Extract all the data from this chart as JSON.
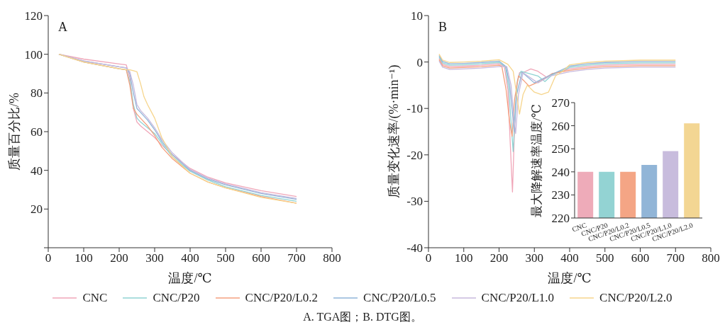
{
  "chart_data": [
    {
      "type": "line",
      "xlabel": "温度/℃",
      "ylabel": "质量百分比/%",
      "xlim": [
        0,
        800
      ],
      "xticks": [
        0,
        100,
        200,
        300,
        400,
        500,
        600,
        700,
        800
      ],
      "ylim": [
        0,
        120
      ],
      "yticks": [
        {
          "value": 0,
          "label": null
        },
        20,
        40,
        60,
        80,
        100,
        120
      ],
      "legend": "bottom",
      "annotations": [
        "A",
        "A. TGA图；B. DTG图。"
      ],
      "series": [
        {
          "name": "CNC",
          "color": "#f0a6b8",
          "x": [
            30,
            100,
            200,
            220,
            230,
            240,
            250,
            260,
            280,
            300,
            320,
            350,
            400,
            450,
            500,
            600,
            700
          ],
          "values": [
            100,
            97.5,
            95,
            94.5,
            88,
            72,
            65,
            63,
            60,
            57,
            53,
            48,
            41,
            36.5,
            33.5,
            29.5,
            26.5
          ]
        },
        {
          "name": "CNC/P20",
          "color": "#8fd3d3",
          "x": [
            30,
            100,
            200,
            220,
            230,
            240,
            250,
            260,
            280,
            300,
            320,
            350,
            400,
            450,
            500,
            600,
            700
          ],
          "values": [
            100,
            96,
            92.5,
            92,
            86,
            74,
            67,
            65,
            62,
            59,
            54,
            47,
            39.5,
            35,
            31.5,
            27,
            24
          ]
        },
        {
          "name": "CNC/P20/L0.2",
          "color": "#f4a07f",
          "x": [
            30,
            100,
            200,
            220,
            230,
            240,
            250,
            260,
            280,
            300,
            320,
            350,
            400,
            450,
            500,
            600,
            700
          ],
          "values": [
            100,
            96,
            92.5,
            92,
            84,
            72,
            69,
            67,
            63,
            58,
            52,
            46,
            38.5,
            34,
            31,
            26.5,
            23
          ]
        },
        {
          "name": "CNC/P20/L0.5",
          "color": "#8fb4d8",
          "x": [
            30,
            100,
            200,
            220,
            230,
            240,
            250,
            260,
            280,
            300,
            320,
            350,
            400,
            450,
            500,
            600,
            700
          ],
          "values": [
            100,
            96.5,
            93.5,
            93,
            90,
            80,
            72,
            70,
            66,
            61,
            55,
            48,
            40,
            35.5,
            32.5,
            28,
            25
          ]
        },
        {
          "name": "CNC/P20/L1.0",
          "color": "#c7b9dd",
          "x": [
            30,
            100,
            200,
            220,
            230,
            240,
            250,
            260,
            280,
            300,
            320,
            350,
            400,
            450,
            500,
            600,
            700
          ],
          "values": [
            100,
            96.5,
            93.5,
            93,
            91,
            84,
            74,
            71,
            67,
            62,
            56,
            49,
            40.5,
            36,
            33,
            28.5,
            25.5
          ]
        },
        {
          "name": "CNC/P20/L2.0",
          "color": "#f6d58c",
          "x": [
            30,
            100,
            200,
            220,
            230,
            240,
            250,
            260,
            270,
            280,
            300,
            320,
            350,
            400,
            450,
            500,
            600,
            700
          ],
          "values": [
            100,
            96,
            92.5,
            92,
            92,
            91.5,
            91,
            85,
            78,
            74,
            67,
            57,
            47,
            38.5,
            34,
            31,
            26,
            23
          ]
        }
      ]
    },
    {
      "type": "line",
      "xlabel": "温度/℃",
      "ylabel": "质量变化速率/(%·min⁻¹)",
      "xlim": [
        0,
        800
      ],
      "xticks": [
        0,
        100,
        200,
        300,
        400,
        500,
        600,
        700,
        800
      ],
      "ylim": [
        -40,
        10
      ],
      "yticks": [
        -40,
        -30,
        -20,
        -10,
        0,
        10
      ],
      "annotations": [
        "B"
      ],
      "series": [
        {
          "color": "#f0a6b8",
          "x": [
            30,
            40,
            60,
            100,
            150,
            200,
            215,
            225,
            232,
            238,
            244,
            250,
            258,
            270,
            290,
            310,
            335,
            350,
            400,
            450,
            500,
            600,
            700
          ],
          "values": [
            0.8,
            -0.5,
            -1,
            -0.9,
            -0.7,
            -0.4,
            -1,
            -6,
            -18,
            -28,
            -14,
            -5,
            -2.3,
            -2.2,
            -1.5,
            -2,
            -3.3,
            -2.6,
            -1.5,
            -1,
            -0.7,
            -0.5,
            -0.5
          ]
        },
        {
          "color": "#8fd3d3",
          "x": [
            30,
            40,
            60,
            100,
            150,
            200,
            218,
            228,
            235,
            240,
            246,
            252,
            262,
            290,
            310,
            330,
            350,
            400,
            450,
            500,
            600,
            700
          ],
          "values": [
            1.1,
            -0.2,
            -0.7,
            -0.6,
            -0.4,
            -0.1,
            -1,
            -6,
            -14,
            -19.3,
            -10,
            -4,
            -2,
            -2.6,
            -3,
            -4.2,
            -2.8,
            -1.2,
            -0.7,
            -0.4,
            -0.2,
            -0.2
          ]
        },
        {
          "color": "#f4a07f",
          "x": [
            30,
            40,
            60,
            100,
            150,
            200,
            208,
            220,
            230,
            237,
            244,
            255,
            270,
            285,
            320,
            350,
            400,
            450,
            500,
            600,
            700
          ],
          "values": [
            0.5,
            -0.8,
            -1.3,
            -1.2,
            -1,
            -0.7,
            -1,
            -6,
            -13,
            -16,
            -8,
            -3,
            -4,
            -5.2,
            -4,
            -2.5,
            -1.8,
            -1.3,
            -1,
            -0.8,
            -0.8
          ]
        },
        {
          "color": "#8fb4d8",
          "x": [
            30,
            40,
            60,
            100,
            150,
            200,
            220,
            230,
            238,
            243,
            250,
            265,
            300,
            340,
            400,
            450,
            500,
            600,
            700
          ],
          "values": [
            1.4,
            0.1,
            -0.4,
            -0.3,
            -0.1,
            0.2,
            -1,
            -5,
            -11,
            -15,
            -7,
            -2.2,
            -4.5,
            -3,
            -0.9,
            -0.4,
            -0.1,
            0.1,
            0.1
          ]
        },
        {
          "color": "#c7b9dd",
          "x": [
            30,
            40,
            60,
            100,
            150,
            200,
            222,
            234,
            242,
            247,
            255,
            268,
            310,
            345,
            400,
            450,
            500,
            600,
            700
          ],
          "values": [
            0.2,
            -1.1,
            -1.6,
            -1.5,
            -1.3,
            -1,
            -1,
            -5,
            -12,
            -15.4,
            -7,
            -2.3,
            -4.5,
            -3,
            -2.1,
            -1.6,
            -1.3,
            -1.1,
            -1.1
          ]
        },
        {
          "color": "#f6d58c",
          "x": [
            30,
            40,
            60,
            100,
            150,
            200,
            225,
            240,
            250,
            258,
            268,
            280,
            300,
            320,
            340,
            360,
            380,
            400,
            450,
            500,
            600,
            700
          ],
          "values": [
            1.7,
            0.4,
            -0.1,
            0,
            0.2,
            0.5,
            -0.5,
            -2,
            -7,
            -11.2,
            -7,
            -5,
            -6.5,
            -7,
            -6.5,
            -3,
            -2,
            -0.6,
            -0.1,
            0.2,
            0.4,
            0.4
          ]
        }
      ]
    },
    {
      "type": "bar",
      "ylabel": "最大降解速率温度/℃",
      "categories": [
        "CNC",
        "CNC/P20",
        "CNC/P20/L0.2",
        "CNC/P20/L0.5",
        "CNC/P20/L1.0",
        "CNC/P20/L2.0"
      ],
      "values": [
        240,
        240,
        240,
        243,
        249,
        261
      ],
      "colors": [
        "#eeabb9",
        "#93d3d3",
        "#f4a585",
        "#91b5d7",
        "#c8bcdd",
        "#f3d693"
      ],
      "ylim": [
        220,
        270
      ],
      "yticks": [
        220,
        230,
        240,
        250,
        260,
        270
      ]
    }
  ]
}
